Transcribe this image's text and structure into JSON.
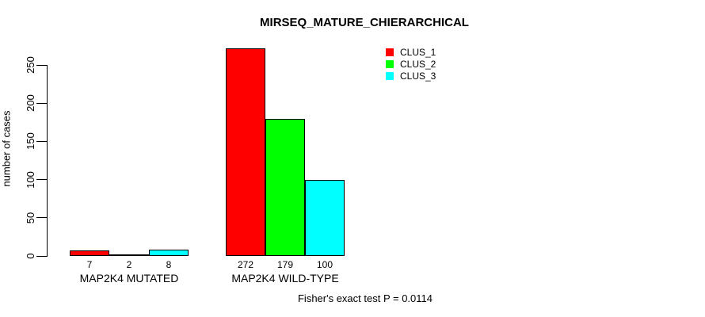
{
  "chart_data": {
    "type": "bar",
    "title": "MIRSEQ_MATURE_CHIERARCHICAL",
    "ylabel": "number of cases",
    "xlabel": "",
    "categories": [
      "MAP2K4 MUTATED",
      "MAP2K4 WILD-TYPE"
    ],
    "series": [
      {
        "name": "CLUS_1",
        "color": "#FF0000",
        "values": [
          7,
          272
        ]
      },
      {
        "name": "CLUS_2",
        "color": "#00FF00",
        "values": [
          2,
          179
        ]
      },
      {
        "name": "CLUS_3",
        "color": "#00FFFF",
        "values": [
          8,
          100
        ]
      }
    ],
    "yticks": [
      0,
      50,
      100,
      150,
      200,
      250
    ],
    "ylim": [
      0,
      282
    ],
    "grid": false,
    "legend_position": "top-right",
    "show_value_labels": true,
    "annotation": "Fisher's exact test P = 0.0114",
    "axis_color": "#000000",
    "background": "#FFFFFF"
  }
}
